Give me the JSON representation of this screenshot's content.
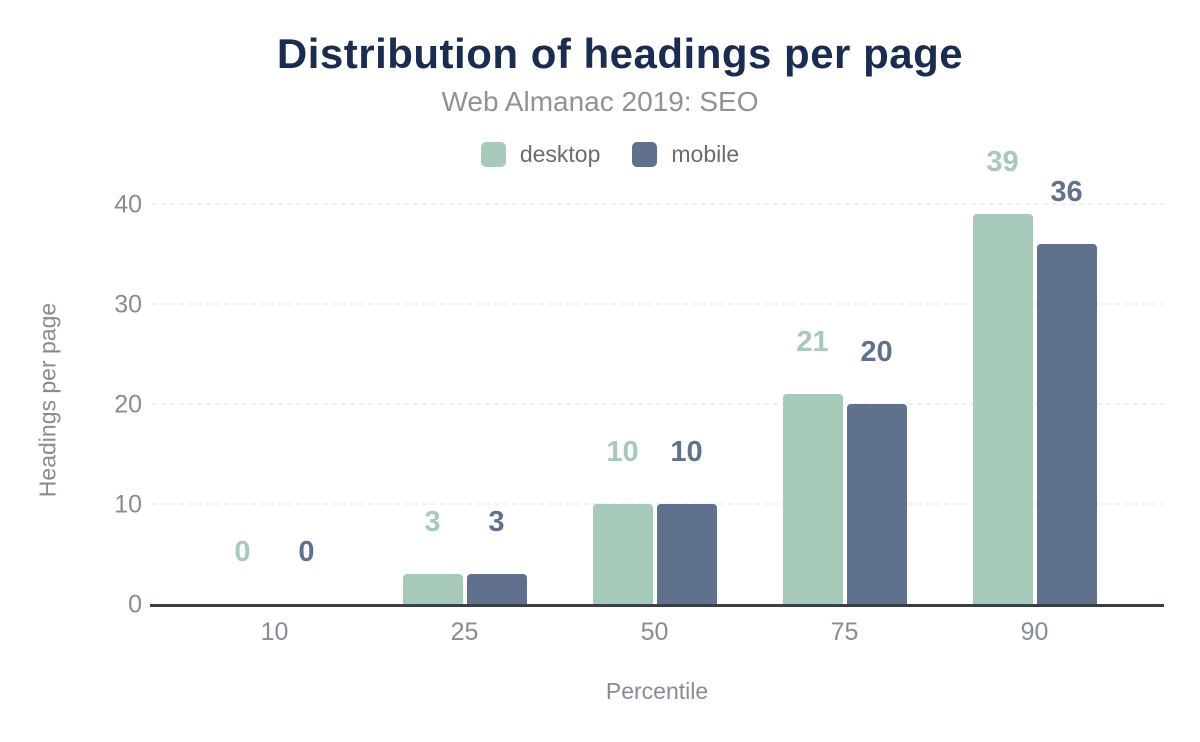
{
  "chart_data": {
    "type": "bar",
    "title": "Distribution of headings per page",
    "subtitle": "Web Almanac 2019: SEO",
    "categories": [
      "10",
      "25",
      "50",
      "75",
      "90"
    ],
    "series": [
      {
        "name": "desktop",
        "color": "#a7c9ba",
        "values": [
          0,
          3,
          10,
          21,
          39
        ]
      },
      {
        "name": "mobile",
        "color": "#5f718c",
        "values": [
          0,
          3,
          10,
          20,
          36
        ]
      }
    ],
    "xlabel": "Percentile",
    "ylabel": "Headings per page",
    "ylim": [
      0,
      40
    ],
    "yticks": [
      0,
      10,
      20,
      30,
      40
    ],
    "grid": true,
    "legend_position": "top",
    "value_labels": true
  },
  "colors": {
    "background": "#ffffff",
    "title": "#1a2c50",
    "subtitle": "#909296",
    "axis_text": "#878c94",
    "axis_line": "#3a3f46",
    "gridline": "#f0f0f1",
    "legend_text": "#6a6c6f",
    "desktop": "#a7c9ba",
    "mobile": "#5f718c"
  }
}
